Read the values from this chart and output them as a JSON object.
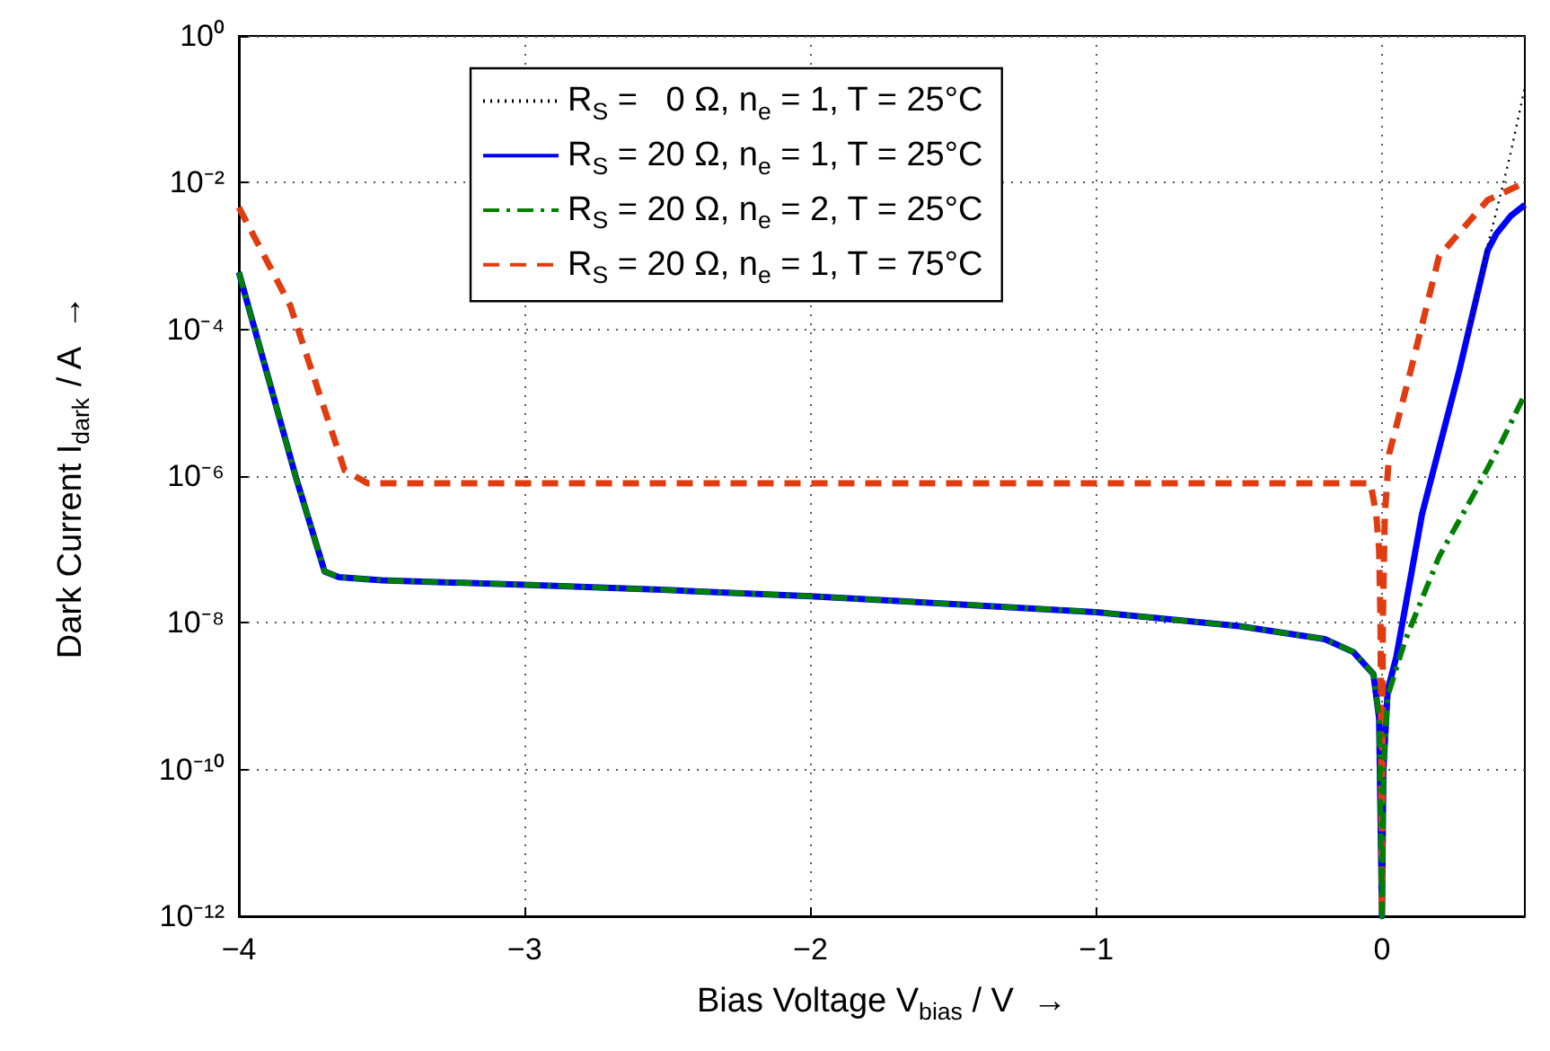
{
  "chart_data": {
    "type": "line",
    "xlabel": "Bias Voltage V$_{bias}$ / V  →",
    "ylabel": "Dark Current I$_{dark}$ / A  →",
    "xlim": [
      -4,
      0.5
    ],
    "xticks": [
      -4,
      -3,
      -2,
      -1,
      0
    ],
    "ylim": [
      1e-12,
      1
    ],
    "log": "y",
    "yticks": [
      {
        "value": 1e-12,
        "label": "10⁻¹²"
      },
      {
        "value": 1e-10,
        "label": "10⁻¹⁰"
      },
      {
        "value": 1e-08,
        "label": "10⁻⁸"
      },
      {
        "value": 1e-06,
        "label": "10⁻⁶"
      },
      {
        "value": 0.0001,
        "label": "10⁻⁴"
      },
      {
        "value": 0.01,
        "label": "10⁻²"
      },
      {
        "value": 1,
        "label": "10⁰"
      }
    ],
    "grid": true,
    "legend": "top",
    "marker": "none",
    "series": [
      {
        "name": "R$_{S}$ =   0 Ω, n$_{e}$ = 1, T = 25°C",
        "color": "#000000",
        "line_style": "dotted",
        "x": [
          0.3,
          0.37,
          0.4,
          0.45,
          0.5
        ],
        "values": [
          8e-05,
          0.0014,
          0.004,
          0.025,
          0.2
        ]
      },
      {
        "name": "R$_{S}$ = 20 Ω, n$_{e}$ = 1, T = 25°C",
        "color": "#0000ff",
        "line_style": "solid",
        "x": [
          -4,
          -3.9,
          -3.8,
          -3.7,
          -3.65,
          -3.5,
          -3,
          -2.5,
          -2,
          -1.5,
          -1,
          -0.5,
          -0.2,
          -0.1,
          -0.03,
          -0.01,
          0,
          0.005,
          0.02,
          0.05,
          0.14,
          0.27,
          0.37,
          0.4,
          0.45,
          0.5
        ],
        "values": [
          0.0006,
          2.4e-05,
          9.5e-07,
          5e-08,
          4.2e-08,
          3.8e-08,
          3.3e-08,
          2.8e-08,
          2.3e-08,
          1.8e-08,
          1.4e-08,
          9e-09,
          6e-09,
          4e-09,
          2e-09,
          5e-10,
          1e-12,
          1e-10,
          1.2e-09,
          3.4e-09,
          3e-07,
          2.7e-05,
          0.0012,
          0.002,
          0.0035,
          0.005
        ]
      },
      {
        "name": "R$_{S}$ = 20 Ω, n$_{e}$ = 2, T = 25°C",
        "color": "#008000",
        "line_style": "dashdot",
        "x": [
          -4,
          -3.9,
          -3.8,
          -3.7,
          -3.65,
          -3.5,
          -3,
          -2.5,
          -2,
          -1.5,
          -1,
          -0.5,
          -0.2,
          -0.1,
          -0.03,
          -0.01,
          0,
          0.005,
          0.02,
          0.08,
          0.2,
          0.33,
          0.42,
          0.5
        ],
        "values": [
          0.0006,
          2.4e-05,
          9.5e-07,
          5e-08,
          4.2e-08,
          3.8e-08,
          3.3e-08,
          2.8e-08,
          2.3e-08,
          1.8e-08,
          1.4e-08,
          9e-09,
          6e-09,
          4e-09,
          2e-09,
          5e-10,
          1e-12,
          1e-10,
          1e-09,
          5.6e-09,
          8e-08,
          6.5e-07,
          3e-06,
          1.3e-05
        ]
      },
      {
        "name": "R$_{S}$ = 20 Ω, n$_{e}$ = 1, T = 75°C",
        "color": "#e03c10",
        "line_style": "dashed",
        "x": [
          -4,
          -3.82,
          -3.63,
          -3.55,
          -2,
          -0.04,
          -0.02,
          -0.01,
          -0.005,
          0,
          0.003,
          0.01,
          0.025,
          0.1,
          0.2,
          0.37,
          0.5
        ],
        "values": [
          0.0046,
          0.00021,
          1.2e-06,
          8e-07,
          8e-07,
          8e-07,
          3e-07,
          1e-07,
          1e-08,
          1e-12,
          1e-08,
          3e-07,
          2e-06,
          2.7e-05,
          0.001,
          0.0058,
          0.01
        ]
      }
    ]
  }
}
